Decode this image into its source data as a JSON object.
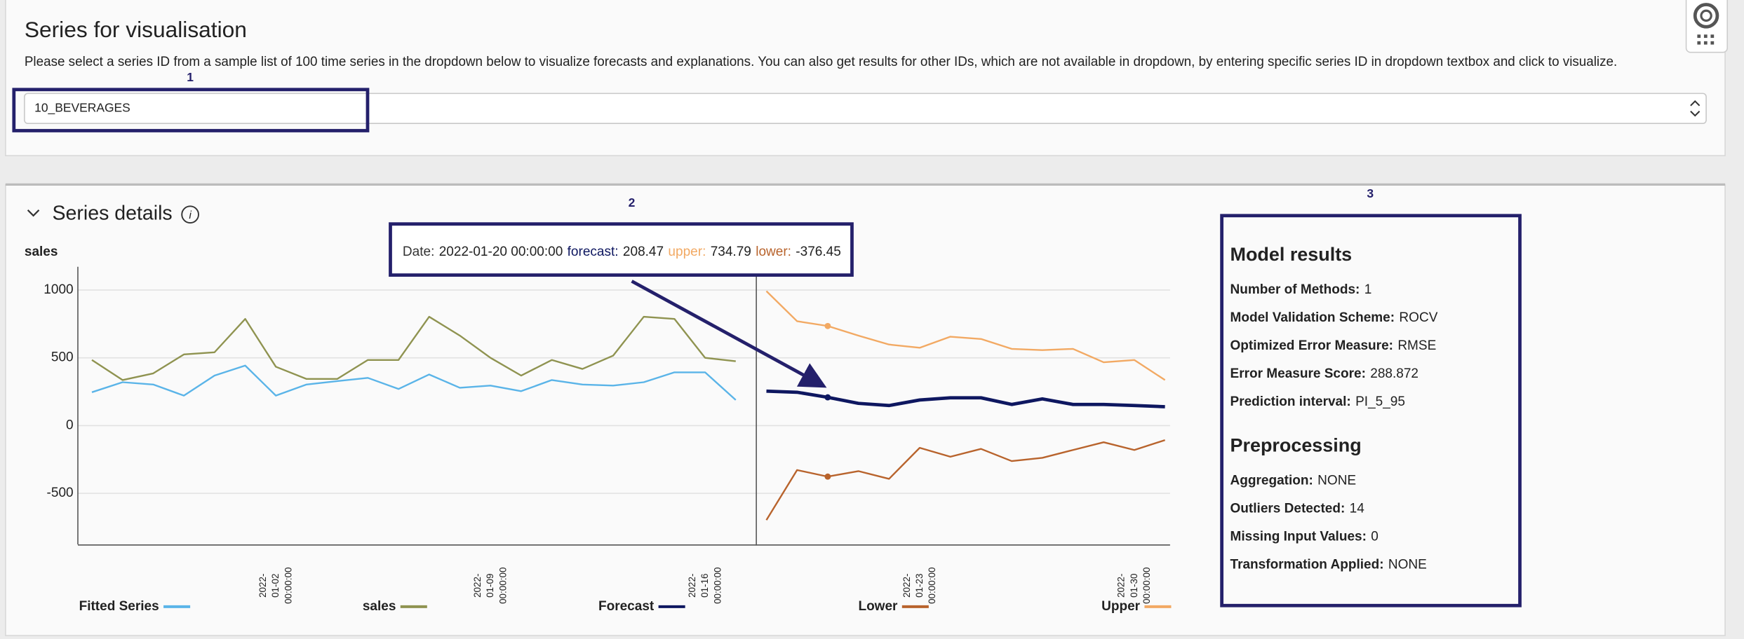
{
  "header": {
    "title": "Series for visualisation",
    "description": "Please select a series ID from a sample list of 100 time series in the dropdown below to visualize forecasts and explanations. You can also get results for other IDs, which are not available in dropdown, by entering specific series ID in dropdown textbox and click to visualize."
  },
  "dropdown": {
    "value": "10_BEVERAGES"
  },
  "annotations": [
    "1",
    "2",
    "3"
  ],
  "details": {
    "title": "Series details"
  },
  "chart_data": {
    "type": "line",
    "y_label": "sales",
    "x": [
      "2021-12-27 00:00:00",
      "2021-12-28 00:00:00",
      "2021-12-29 00:00:00",
      "2021-12-30 00:00:00",
      "2021-12-31 00:00:00",
      "2022-01-01 00:00:00",
      "2022-01-02 00:00:00",
      "2022-01-03 00:00:00",
      "2022-01-04 00:00:00",
      "2022-01-05 00:00:00",
      "2022-01-06 00:00:00",
      "2022-01-07 00:00:00",
      "2022-01-08 00:00:00",
      "2022-01-09 00:00:00",
      "2022-01-10 00:00:00",
      "2022-01-11 00:00:00",
      "2022-01-12 00:00:00",
      "2022-01-13 00:00:00",
      "2022-01-14 00:00:00",
      "2022-01-15 00:00:00",
      "2022-01-16 00:00:00",
      "2022-01-17 00:00:00",
      "2022-01-18 00:00:00",
      "2022-01-19 00:00:00",
      "2022-01-20 00:00:00",
      "2022-01-21 00:00:00",
      "2022-01-22 00:00:00",
      "2022-01-23 00:00:00",
      "2022-01-24 00:00:00",
      "2022-01-25 00:00:00",
      "2022-01-26 00:00:00",
      "2022-01-27 00:00:00",
      "2022-01-28 00:00:00",
      "2022-01-29 00:00:00",
      "2022-01-30 00:00:00",
      "2022-01-31 00:00:00"
    ],
    "xlim": [
      "2021-12-26 13:00:00",
      "2022-01-31 04:00:00"
    ],
    "xticks": [
      "2022-01-02 00:00:00",
      "2022-01-09 00:00:00",
      "2022-01-16 00:00:00",
      "2022-01-23 00:00:00",
      "2022-01-30 00:00:00"
    ],
    "ylim": [
      -877,
      1172
    ],
    "yticks": [
      -500,
      0,
      500,
      1000
    ],
    "grid": true,
    "series": [
      {
        "name": "Fitted Series",
        "color": "#5ab4e8",
        "values": [
          246,
          320,
          303,
          221,
          369,
          443,
          221,
          303,
          328,
          352,
          270,
          377,
          279,
          295,
          254,
          336,
          303,
          295,
          320,
          393,
          393,
          189,
          null,
          null,
          null,
          null,
          null,
          null,
          null,
          null,
          null,
          null,
          null,
          null,
          null,
          null
        ]
      },
      {
        "name": "sales",
        "color": "#8f9350",
        "values": [
          484,
          336,
          385,
          525,
          541,
          787,
          434,
          344,
          344,
          484,
          484,
          803,
          664,
          500,
          369,
          484,
          418,
          516,
          803,
          787,
          500,
          475,
          null,
          null,
          null,
          null,
          null,
          null,
          null,
          null,
          null,
          null,
          null,
          null,
          null,
          null
        ]
      },
      {
        "name": "Forecast",
        "color": "#0e1760",
        "values": [
          null,
          null,
          null,
          null,
          null,
          null,
          null,
          null,
          null,
          null,
          null,
          null,
          null,
          null,
          null,
          null,
          null,
          null,
          null,
          null,
          null,
          null,
          254,
          246,
          208.47,
          164,
          148,
          189,
          205,
          205,
          156,
          197,
          156,
          156,
          148,
          139
        ]
      },
      {
        "name": "Lower",
        "color": "#b8632c",
        "values": [
          null,
          null,
          null,
          null,
          null,
          null,
          null,
          null,
          null,
          null,
          null,
          null,
          null,
          null,
          null,
          null,
          null,
          null,
          null,
          null,
          null,
          null,
          -697,
          -328,
          -376.45,
          -336,
          -393,
          -164,
          -230,
          -172,
          -262,
          -238,
          -180,
          -123,
          -180,
          -107
        ]
      },
      {
        "name": "Upper",
        "color": "#f2a963",
        "values": [
          null,
          null,
          null,
          null,
          null,
          null,
          null,
          null,
          null,
          null,
          null,
          null,
          null,
          null,
          null,
          null,
          null,
          null,
          null,
          null,
          null,
          null,
          992,
          770,
          734.79,
          664,
          598,
          574,
          656,
          639,
          566,
          557,
          566,
          467,
          484,
          336
        ]
      }
    ]
  },
  "tooltip": {
    "items": [
      {
        "label": "Date:",
        "value": "2022-01-20 00:00:00",
        "color": "#333333"
      },
      {
        "label": "forecast:",
        "value": 208.47,
        "color": "#0e1760"
      },
      {
        "label": "upper:",
        "value": 734.79,
        "color": "#f2a963"
      },
      {
        "label": "lower:",
        "value": -376.45,
        "color": "#b8632c"
      }
    ]
  },
  "model_results": {
    "title": "Model results",
    "rows": [
      {
        "label": "Number of Methods:",
        "value": 1
      },
      {
        "label": "Model Validation Scheme:",
        "value": "ROCV"
      },
      {
        "label": "Optimized Error Measure:",
        "value": "RMSE"
      },
      {
        "label": "Error Measure Score:",
        "value": 288.872
      },
      {
        "label": "Prediction interval:",
        "value": "PI_5_95"
      }
    ]
  },
  "preprocessing": {
    "title": "Preprocessing",
    "rows": [
      {
        "label": "Aggregation:",
        "value": "NONE"
      },
      {
        "label": "Outliers Detected:",
        "value": 14
      },
      {
        "label": "Missing Input Values:",
        "value": 0
      },
      {
        "label": "Transformation Applied:",
        "value": "NONE"
      }
    ]
  }
}
